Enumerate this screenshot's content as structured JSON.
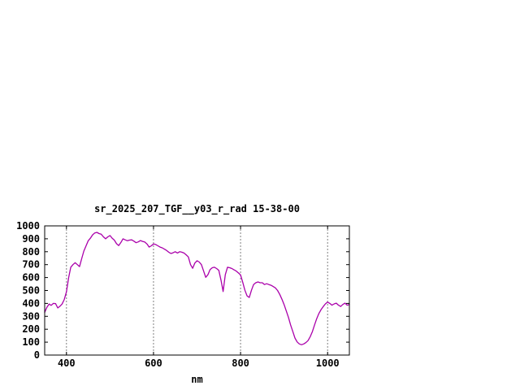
{
  "page": {
    "background": "#ffffff"
  },
  "chart_data": {
    "type": "line",
    "title": "sr_2025_207_TGF__y03_r_rad 15-38-00",
    "xlabel": "nm",
    "ylabel": "",
    "xlim": [
      350,
      1050
    ],
    "ylim": [
      0,
      1000
    ],
    "xticks": [
      400,
      600,
      800,
      1000
    ],
    "yticks": [
      0,
      100,
      200,
      300,
      400,
      500,
      600,
      700,
      800,
      900,
      1000
    ],
    "grid": "vertical-at-xticks",
    "line_color": "#aa00aa",
    "frame_color": "#000000",
    "grid_color": "#808080",
    "x": [
      350,
      355,
      360,
      365,
      370,
      375,
      380,
      385,
      390,
      395,
      400,
      405,
      410,
      415,
      420,
      425,
      430,
      435,
      440,
      445,
      450,
      455,
      460,
      465,
      470,
      475,
      480,
      485,
      490,
      495,
      500,
      505,
      510,
      515,
      520,
      525,
      530,
      535,
      540,
      545,
      550,
      555,
      560,
      565,
      570,
      575,
      580,
      585,
      590,
      595,
      600,
      605,
      610,
      615,
      620,
      625,
      630,
      635,
      640,
      645,
      650,
      655,
      660,
      665,
      670,
      675,
      680,
      685,
      690,
      695,
      700,
      705,
      710,
      715,
      720,
      725,
      730,
      735,
      740,
      745,
      750,
      755,
      760,
      765,
      770,
      775,
      780,
      785,
      790,
      795,
      800,
      805,
      810,
      815,
      820,
      825,
      830,
      835,
      840,
      845,
      850,
      855,
      860,
      865,
      870,
      875,
      880,
      885,
      890,
      895,
      900,
      905,
      910,
      915,
      920,
      925,
      930,
      935,
      940,
      945,
      950,
      955,
      960,
      965,
      970,
      975,
      980,
      985,
      990,
      995,
      1000,
      1005,
      1010,
      1015,
      1020,
      1025,
      1030,
      1035,
      1040,
      1045,
      1050
    ],
    "y": [
      330,
      370,
      395,
      385,
      400,
      398,
      365,
      378,
      395,
      430,
      490,
      600,
      680,
      700,
      715,
      700,
      685,
      745,
      805,
      845,
      885,
      905,
      930,
      945,
      950,
      940,
      935,
      915,
      900,
      915,
      925,
      905,
      890,
      862,
      848,
      872,
      900,
      892,
      885,
      890,
      892,
      882,
      870,
      876,
      886,
      880,
      875,
      860,
      836,
      846,
      860,
      856,
      846,
      836,
      830,
      820,
      810,
      796,
      786,
      792,
      800,
      790,
      800,
      796,
      790,
      776,
      760,
      700,
      672,
      712,
      730,
      720,
      700,
      652,
      602,
      622,
      662,
      676,
      680,
      670,
      656,
      580,
      492,
      622,
      680,
      676,
      670,
      660,
      650,
      636,
      620,
      562,
      502,
      458,
      446,
      502,
      546,
      560,
      566,
      560,
      560,
      546,
      552,
      546,
      540,
      530,
      520,
      500,
      470,
      432,
      392,
      342,
      292,
      232,
      182,
      132,
      102,
      86,
      80,
      86,
      96,
      112,
      142,
      182,
      232,
      282,
      322,
      352,
      376,
      396,
      410,
      400,
      386,
      396,
      402,
      386,
      376,
      392,
      402,
      386,
      392
    ]
  }
}
